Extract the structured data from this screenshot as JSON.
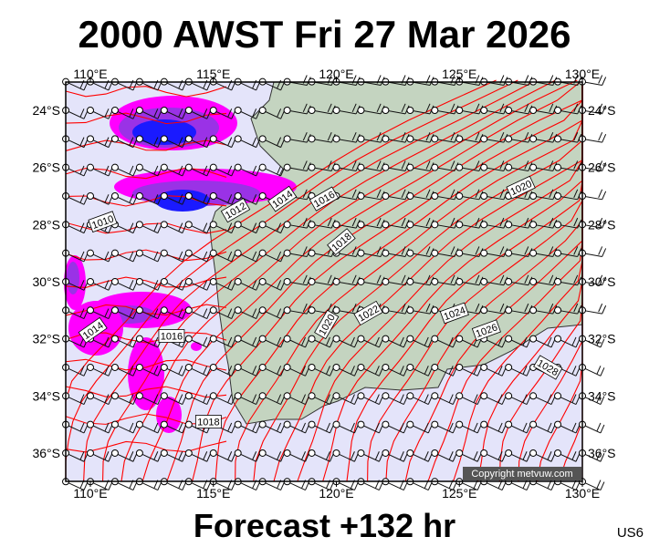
{
  "header": {
    "title": "2000 AWST Fri 27 Mar 2026"
  },
  "footer": {
    "forecast": "Forecast +132 hr",
    "code": "US6"
  },
  "map": {
    "lon_labels": [
      "110°E",
      "115°E",
      "120°E",
      "125°E",
      "130°E"
    ],
    "lat_labels": [
      "24°S",
      "26°S",
      "28°S",
      "30°S",
      "32°S",
      "34°S",
      "36°S"
    ],
    "isobar_labels": [
      {
        "text": "1010",
        "lon": 110.5,
        "lat": -27.9,
        "angle": -20
      },
      {
        "text": "1012",
        "lon": 115.9,
        "lat": -27.5,
        "angle": -30
      },
      {
        "text": "1014",
        "lon": 117.8,
        "lat": -27.1,
        "angle": -35
      },
      {
        "text": "1016",
        "lon": 119.5,
        "lat": -27.1,
        "angle": -30
      },
      {
        "text": "1018",
        "lon": 120.2,
        "lat": -28.6,
        "angle": -40
      },
      {
        "text": "1020",
        "lon": 127.5,
        "lat": -26.7,
        "angle": -25
      },
      {
        "text": "1014",
        "lon": 110.1,
        "lat": -31.7,
        "angle": -35
      },
      {
        "text": "1016",
        "lon": 113.3,
        "lat": -31.9,
        "angle": 0
      },
      {
        "text": "1018",
        "lon": 114.8,
        "lat": -34.9,
        "angle": 0
      },
      {
        "text": "1020",
        "lon": 119.6,
        "lat": -31.5,
        "angle": -60
      },
      {
        "text": "1022",
        "lon": 121.3,
        "lat": -31.1,
        "angle": -30
      },
      {
        "text": "1024",
        "lon": 124.8,
        "lat": -31.1,
        "angle": -20
      },
      {
        "text": "1026",
        "lon": 126.1,
        "lat": -31.7,
        "angle": -20
      },
      {
        "text": "1028",
        "lon": 128.6,
        "lat": -33.0,
        "angle": 30
      }
    ],
    "copyright": "Copyright metvuw.com",
    "colors": {
      "ocean": "#e4e4fa",
      "land": "#c4d4c0",
      "isobar": "#ff0000",
      "rain_light": "#ff00ff",
      "rain_mid": "#9a32e6",
      "rain_heavy": "#1a1aff"
    }
  }
}
